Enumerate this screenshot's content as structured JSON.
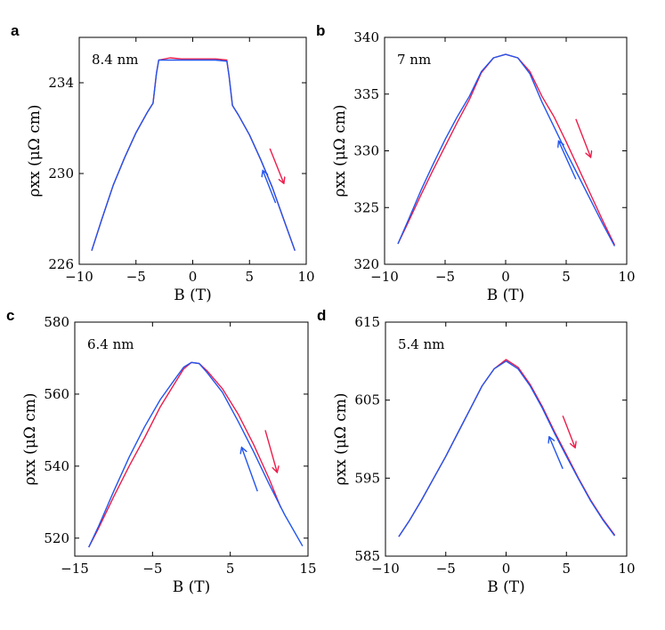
{
  "colors": {
    "sweep_down": "#ee1c4a",
    "sweep_up": "#2255ee"
  },
  "chart_data": [
    {
      "type": "line",
      "panel": "a",
      "annotation": "8.4 nm",
      "xlabel": "B (T)",
      "ylabel": "ρxx (μΩ cm)",
      "xlim": [
        -10,
        10
      ],
      "ylim": [
        226,
        236
      ],
      "xticks": [
        -10,
        -5,
        0,
        5,
        10
      ],
      "yticks": [
        226,
        230,
        234
      ],
      "x_tick_labels": [
        "−10",
        "−5",
        "0",
        "5",
        "10"
      ],
      "y_tick_labels": [
        "226",
        "230",
        "234"
      ],
      "arrows": [
        {
          "name": "sweep-down",
          "direction": "down",
          "from": [
            6.8,
            231.1
          ],
          "to": [
            8.0,
            229.6
          ]
        },
        {
          "name": "sweep-up",
          "direction": "up",
          "from": [
            7.3,
            228.7
          ],
          "to": [
            6.2,
            230.1
          ]
        }
      ],
      "series": [
        {
          "name": "sweep down",
          "color": "sweep_down",
          "x": [
            -8.9,
            -8,
            -7,
            -6,
            -5,
            -4,
            -3.5,
            -3.2,
            -3,
            -2,
            -1,
            0,
            1,
            2,
            3,
            3.2,
            3.5,
            4,
            5,
            6,
            7,
            8,
            9
          ],
          "y": [
            226.6,
            228.0,
            229.5,
            230.7,
            231.8,
            232.7,
            233.1,
            234.4,
            235.0,
            235.1,
            235.05,
            235.05,
            235.05,
            235.05,
            235.0,
            234.3,
            233.0,
            232.6,
            231.7,
            230.6,
            229.4,
            228.0,
            226.6
          ]
        },
        {
          "name": "sweep up",
          "color": "sweep_up",
          "x": [
            -8.9,
            -8,
            -7,
            -6,
            -5,
            -4,
            -3.5,
            -3.2,
            -3,
            -2,
            -1,
            0,
            1,
            2,
            3,
            3.2,
            3.5,
            4,
            5,
            6,
            7,
            8,
            9
          ],
          "y": [
            226.6,
            228.0,
            229.5,
            230.7,
            231.8,
            232.7,
            233.1,
            234.4,
            235.0,
            235.0,
            235.0,
            235.0,
            235.0,
            235.0,
            234.95,
            234.3,
            233.0,
            232.6,
            231.7,
            230.6,
            229.4,
            228.0,
            226.6
          ]
        }
      ]
    },
    {
      "type": "line",
      "panel": "b",
      "annotation": "7 nm",
      "xlabel": "B (T)",
      "ylabel": "ρxx (μΩ cm)",
      "xlim": [
        -10,
        10
      ],
      "ylim": [
        320,
        340
      ],
      "xticks": [
        -10,
        -5,
        0,
        5,
        10
      ],
      "yticks": [
        320,
        325,
        330,
        335,
        340
      ],
      "x_tick_labels": [
        "−10",
        "−5",
        "0",
        "5",
        "10"
      ],
      "y_tick_labels": [
        "320",
        "325",
        "330",
        "335",
        "340"
      ],
      "arrows": [
        {
          "name": "sweep-down",
          "direction": "down",
          "from": [
            5.8,
            332.8
          ],
          "to": [
            7.0,
            329.5
          ]
        },
        {
          "name": "sweep-up",
          "direction": "up",
          "from": [
            5.8,
            327.5
          ],
          "to": [
            4.4,
            330.8
          ]
        }
      ],
      "series": [
        {
          "name": "sweep down",
          "color": "sweep_down",
          "x": [
            -8.9,
            -8,
            -7,
            -6,
            -5,
            -4,
            -3,
            -2,
            -1,
            0,
            1,
            2,
            3,
            4,
            5,
            6,
            7,
            8,
            9
          ],
          "y": [
            321.8,
            323.8,
            326.1,
            328.3,
            330.4,
            332.5,
            334.5,
            336.9,
            338.2,
            338.5,
            338.2,
            337.0,
            334.8,
            333.0,
            330.8,
            328.5,
            326.2,
            323.9,
            321.7
          ]
        },
        {
          "name": "sweep up",
          "color": "sweep_up",
          "x": [
            -8.9,
            -8,
            -7,
            -6,
            -5,
            -4,
            -3,
            -2,
            -1,
            0,
            1,
            2,
            3,
            4,
            5,
            6,
            7,
            8,
            9
          ],
          "y": [
            321.8,
            324.0,
            326.5,
            328.8,
            331.0,
            333.0,
            334.8,
            337.0,
            338.2,
            338.5,
            338.2,
            336.8,
            334.3,
            332.1,
            329.9,
            327.8,
            325.7,
            323.6,
            321.6
          ]
        }
      ]
    },
    {
      "type": "line",
      "panel": "c",
      "annotation": "6.4 nm",
      "xlabel": "B (T)",
      "ylabel": "ρxx (μΩ cm)",
      "xlim": [
        -15,
        15
      ],
      "ylim": [
        515,
        580
      ],
      "xticks": [
        -15,
        -5,
        5,
        15
      ],
      "yticks": [
        520,
        540,
        560,
        580
      ],
      "x_tick_labels": [
        "−15",
        "−5",
        "5",
        "15"
      ],
      "y_tick_labels": [
        "520",
        "540",
        "560",
        "580"
      ],
      "arrows": [
        {
          "name": "sweep-down",
          "direction": "down",
          "from": [
            9.5,
            550.0
          ],
          "to": [
            11.0,
            538.5
          ]
        },
        {
          "name": "sweep-up",
          "direction": "up",
          "from": [
            8.5,
            533.0
          ],
          "to": [
            6.5,
            545.0
          ]
        }
      ],
      "series": [
        {
          "name": "sweep down",
          "color": "sweep_down",
          "x": [
            -13.2,
            -12,
            -10,
            -8,
            -6,
            -4,
            -2,
            -1,
            0,
            1,
            2,
            4,
            6,
            8,
            10,
            11.5
          ],
          "y": [
            517.5,
            522.5,
            531.5,
            540.0,
            548.0,
            556.5,
            563.5,
            567.0,
            568.8,
            568.5,
            566.5,
            561.5,
            554.5,
            546.0,
            536.5,
            528.5
          ]
        },
        {
          "name": "sweep up",
          "color": "sweep_up",
          "x": [
            -13.2,
            -12,
            -10,
            -8,
            -6,
            -4,
            -2,
            -1,
            0,
            1,
            2,
            4,
            6,
            8,
            10,
            12,
            14.3
          ],
          "y": [
            517.5,
            523.0,
            533.0,
            542.5,
            551.0,
            558.5,
            564.5,
            567.5,
            568.8,
            568.5,
            566.0,
            560.5,
            552.5,
            544.0,
            535.0,
            526.5,
            517.8
          ]
        }
      ]
    },
    {
      "type": "line",
      "panel": "d",
      "annotation": "5.4 nm",
      "xlabel": "B (T)",
      "ylabel": "ρxx (μΩ cm)",
      "xlim": [
        -10,
        10
      ],
      "ylim": [
        585,
        615
      ],
      "xticks": [
        -10,
        -5,
        0,
        5,
        10
      ],
      "yticks": [
        585,
        595,
        605,
        615
      ],
      "x_tick_labels": [
        "−10",
        "−5",
        "0",
        "5",
        "10"
      ],
      "y_tick_labels": [
        "585",
        "595",
        "605",
        "615"
      ],
      "arrows": [
        {
          "name": "sweep-down",
          "direction": "down",
          "from": [
            4.7,
            603.0
          ],
          "to": [
            5.7,
            599.0
          ]
        },
        {
          "name": "sweep-up",
          "direction": "up",
          "from": [
            4.7,
            596.2
          ],
          "to": [
            3.6,
            600.2
          ]
        }
      ],
      "series": [
        {
          "name": "sweep down",
          "color": "sweep_down",
          "x": [
            -8.9,
            -8,
            -7,
            -6,
            -5,
            -4,
            -3,
            -2,
            -1,
            0,
            1,
            2,
            3,
            4,
            5,
            6,
            7,
            8,
            9
          ],
          "y": [
            587.5,
            589.6,
            592.2,
            595.0,
            597.8,
            600.8,
            603.8,
            606.8,
            609.0,
            610.2,
            609.2,
            607.0,
            604.2,
            601.0,
            598.0,
            595.0,
            592.2,
            589.8,
            587.7
          ]
        },
        {
          "name": "sweep up",
          "color": "sweep_up",
          "x": [
            -8.9,
            -8,
            -7,
            -6,
            -5,
            -4,
            -3,
            -2,
            -1,
            0,
            1,
            2,
            3,
            4,
            5,
            6,
            7,
            8,
            9
          ],
          "y": [
            587.5,
            589.6,
            592.2,
            595.0,
            597.8,
            600.8,
            603.8,
            606.8,
            609.0,
            610.0,
            609.0,
            606.8,
            604.0,
            600.8,
            597.8,
            594.9,
            592.1,
            589.7,
            587.6
          ]
        }
      ]
    }
  ]
}
